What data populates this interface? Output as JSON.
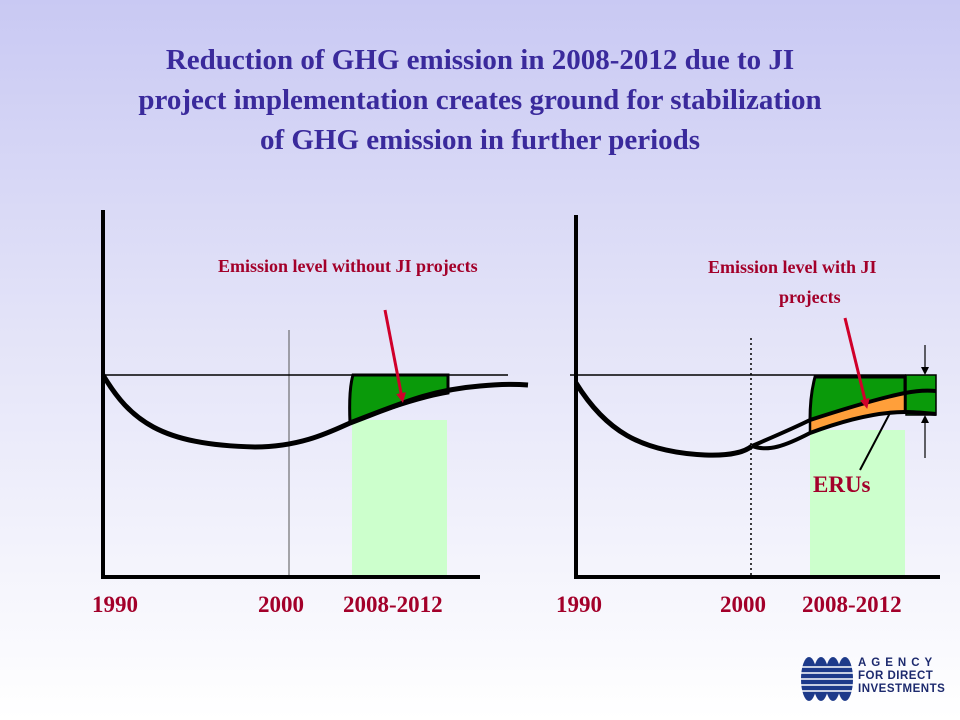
{
  "title": {
    "line1": "Reduction of GHG emission in 2008-2012 due to JI",
    "line2": "project implementation creates  ground for  stabilization",
    "line3": "of GHG emission in further periods"
  },
  "left_diagram": {
    "label": "Emission level without JI projects",
    "years": [
      "1990",
      "2000",
      "2008-2012"
    ]
  },
  "right_diagram": {
    "label_line1": "Emission level with JI",
    "label_line2": "projects",
    "eru_label": "ERUs",
    "years": [
      "1990",
      "2000",
      "2008-2012"
    ]
  },
  "logo": {
    "line1": "AGENCY",
    "line2": "FOR DIRECT",
    "line3": "INVESTMENTS"
  },
  "colors": {
    "title": "#3a2a9c",
    "labels": "#a3002a",
    "dark_green": "#0a9a0a",
    "light_green": "#ccffcc",
    "eru_orange": "#ff9f3a"
  }
}
